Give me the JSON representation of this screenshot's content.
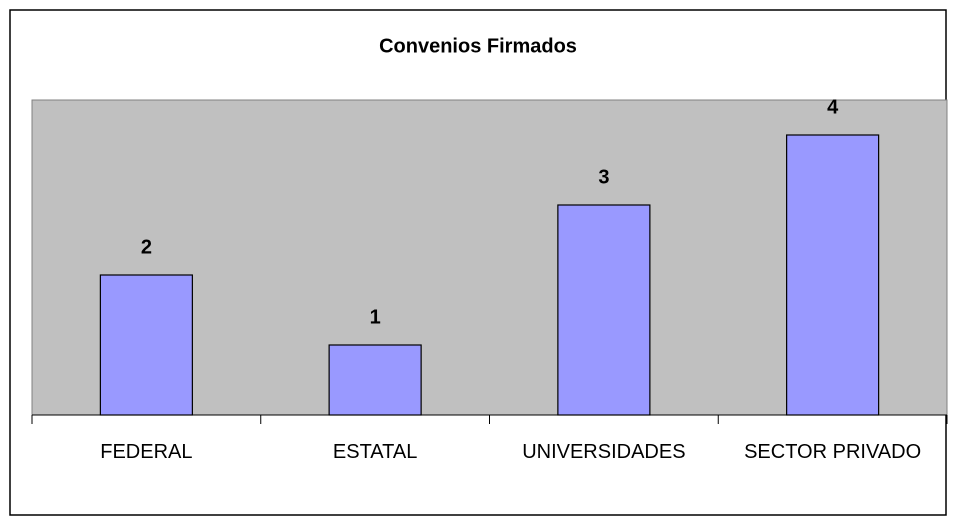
{
  "chart_data": {
    "type": "bar",
    "title": "Convenios Firmados",
    "categories": [
      "FEDERAL",
      "ESTATAL",
      "UNIVERSIDADES",
      "SECTOR PRIVADO"
    ],
    "values": [
      2,
      1,
      3,
      4
    ],
    "color": "#9999ff",
    "ylim": [
      0,
      4.5
    ]
  }
}
